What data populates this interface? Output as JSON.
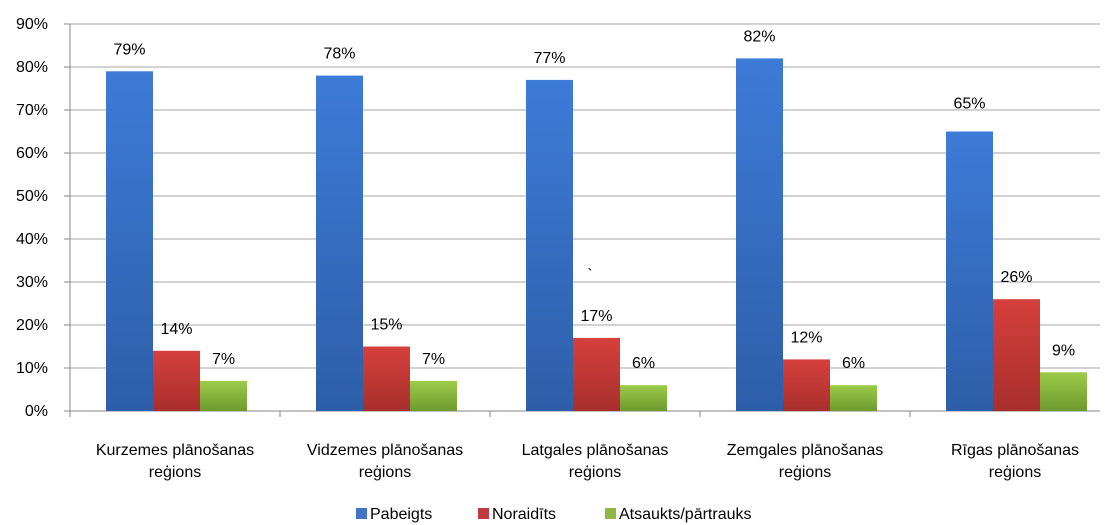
{
  "chart_data": {
    "type": "bar",
    "title": "",
    "xlabel": "",
    "ylabel": "",
    "ylim": [
      0,
      90
    ],
    "grid": true,
    "legend_position": "bottom",
    "categories": [
      [
        "Kurzemes plānošanas",
        "reģions"
      ],
      [
        "Vidzemes plānošanas",
        "reģions"
      ],
      [
        "Latgales plānošanas",
        "reģions"
      ],
      [
        "Zemgales plānošanas",
        "reģions"
      ],
      [
        "Rīgas plānošanas",
        "reģions"
      ]
    ],
    "y_ticks": [
      "0%",
      "10%",
      "20%",
      "30%",
      "40%",
      "50%",
      "60%",
      "70%",
      "80%",
      "90%"
    ],
    "series": [
      {
        "name": "Pabeigts",
        "color": "#4472C4",
        "values": [
          79,
          78,
          77,
          82,
          65
        ],
        "labels": [
          "79%",
          "78%",
          "77%",
          "82%",
          "65%"
        ]
      },
      {
        "name": "Noraidīts",
        "color": "#C0393B",
        "values": [
          14,
          15,
          17,
          12,
          26
        ],
        "labels": [
          "14%",
          "15%",
          "17%",
          "12%",
          "26%"
        ]
      },
      {
        "name": "Atsaukts/pārtrauks",
        "color": "#8DB843",
        "values": [
          7,
          7,
          6,
          6,
          9
        ],
        "labels": [
          "7%",
          "7%",
          "6%",
          "6%",
          "9%"
        ]
      }
    ],
    "annotations": [
      "`"
    ]
  }
}
